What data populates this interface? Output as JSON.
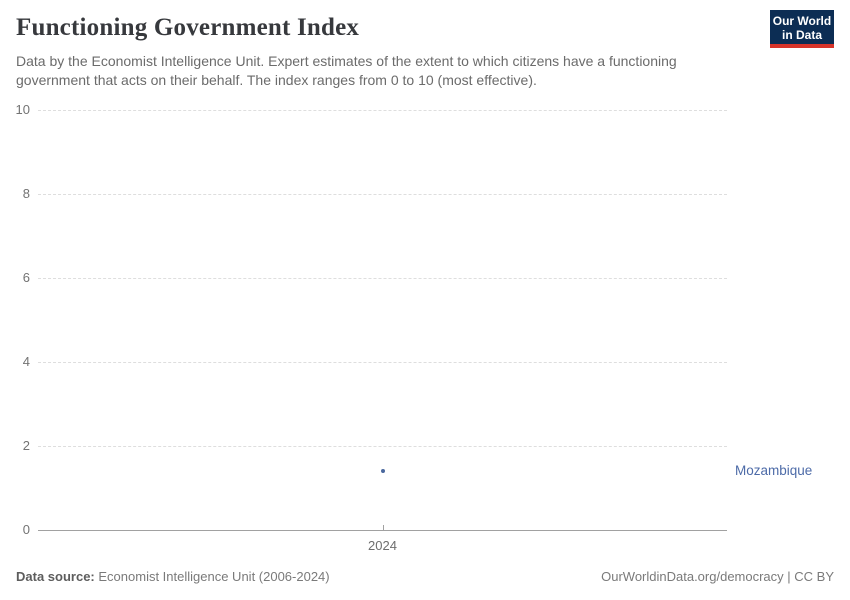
{
  "header": {
    "title": "Functioning Government Index",
    "subtitle": "Data by the Economist Intelligence Unit. Expert estimates of the extent to which citizens have a functioning government that acts on their behalf. The index ranges from 0 to 10 (most effective).",
    "logo": {
      "line1": "Our World",
      "line2": "in Data",
      "bg_color": "#0c2d54",
      "accent_color": "#d7342a"
    }
  },
  "chart_data": {
    "type": "scatter",
    "title": "Functioning Government Index",
    "x": [
      2024
    ],
    "series": [
      {
        "name": "Mozambique",
        "values": [
          1.4
        ],
        "color": "#4a689e",
        "label_color": "#4d6ba8"
      }
    ],
    "xlabel": "",
    "ylabel": "",
    "ylim": [
      0,
      10
    ],
    "yticks": [
      0,
      2,
      4,
      6,
      8,
      10
    ],
    "xticks": [
      2024
    ],
    "grid": "horizontal-dashed",
    "legend": "entity-label-right"
  },
  "footer": {
    "source_label": "Data source:",
    "source_text": "Economist Intelligence Unit (2006-2024)",
    "credit": "OurWorldinData.org/democracy | CC BY"
  }
}
